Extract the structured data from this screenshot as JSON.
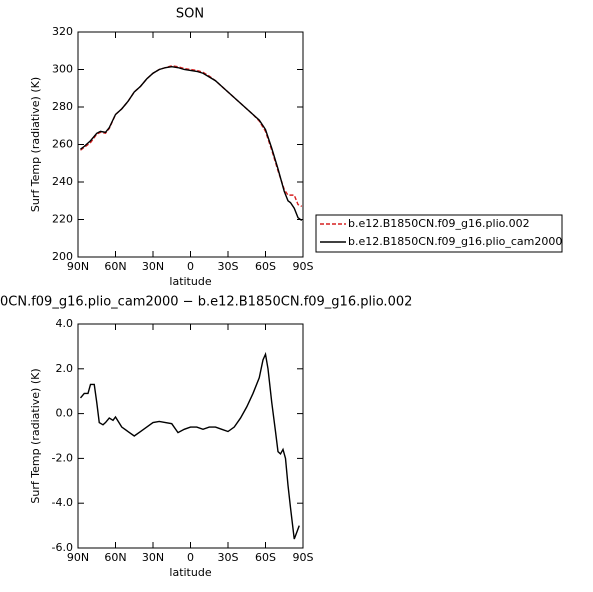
{
  "chart_data": [
    {
      "type": "line",
      "title": "SON",
      "xlabel": "latitude",
      "ylabel": "Surf Temp (radiative) (K)",
      "x": [
        88,
        85,
        80,
        75,
        72,
        68,
        65,
        60,
        55,
        50,
        45,
        40,
        35,
        30,
        25,
        20,
        15,
        10,
        5,
        0,
        -5,
        -10,
        -15,
        -20,
        -25,
        -30,
        -35,
        -40,
        -45,
        -50,
        -55,
        -60,
        -65,
        -70,
        -75,
        -78,
        -80,
        -83,
        -86,
        -89
      ],
      "series": [
        {
          "name": "b.e12.B1850CN.f09_g16.plio.002",
          "color": "#d62020",
          "linestyle": "dashed",
          "values": [
            257,
            258.5,
            261,
            265.5,
            266.5,
            266,
            268.5,
            276,
            279,
            283,
            288,
            291,
            295,
            298,
            300,
            301,
            302,
            301.5,
            300.5,
            300,
            299.5,
            298.5,
            296.5,
            294,
            291,
            288,
            285,
            282,
            279,
            276,
            272.5,
            267,
            257,
            246,
            236,
            233,
            233,
            233,
            228,
            227
          ]
        },
        {
          "name": "b.e12.B1850CN.f09_g16.plio_cam2000",
          "color": "#000000",
          "linestyle": "solid",
          "values": [
            257.5,
            259,
            262,
            266,
            267,
            266.5,
            269,
            276,
            279,
            283,
            288,
            291,
            295,
            298,
            300,
            301,
            301.5,
            301,
            300,
            299.5,
            299,
            298,
            296,
            294,
            291,
            288,
            285,
            282,
            279,
            276,
            273,
            268,
            258,
            247,
            235,
            230,
            229,
            226,
            221,
            219.5
          ]
        }
      ],
      "xlim": [
        90,
        -90
      ],
      "xticks": [
        {
          "value": 90,
          "label": "90N"
        },
        {
          "value": 60,
          "label": "60N"
        },
        {
          "value": 30,
          "label": "30N"
        },
        0,
        {
          "value": -30,
          "label": "30S"
        },
        {
          "value": -60,
          "label": "60S"
        },
        {
          "value": -90,
          "label": "90S"
        }
      ],
      "ylim": [
        200,
        320
      ],
      "yticks": [
        200,
        220,
        240,
        260,
        280,
        300,
        320
      ],
      "legend": "right"
    },
    {
      "type": "line",
      "title": "0CN.f09_g16.plio_cam2000 − b.e12.B1850CN.f09_g16.plio.002",
      "xlabel": "latitude",
      "ylabel": "Surf Temp (radiative) (K)",
      "x": [
        88,
        85,
        82,
        80,
        77,
        75,
        73,
        70,
        68,
        65,
        62,
        60,
        55,
        50,
        45,
        40,
        35,
        30,
        25,
        20,
        15,
        10,
        5,
        0,
        -5,
        -10,
        -15,
        -20,
        -25,
        -30,
        -35,
        -40,
        -45,
        -50,
        -55,
        -58,
        -60,
        -62,
        -65,
        -68,
        -70,
        -72,
        -74,
        -76,
        -78,
        -80,
        -83,
        -85,
        -87
      ],
      "values": [
        0.7,
        0.9,
        0.9,
        1.3,
        1.3,
        0.5,
        -0.4,
        -0.5,
        -0.4,
        -0.2,
        -0.3,
        -0.15,
        -0.6,
        -0.8,
        -1.0,
        -0.8,
        -0.6,
        -0.4,
        -0.35,
        -0.4,
        -0.45,
        -0.85,
        -0.7,
        -0.6,
        -0.6,
        -0.7,
        -0.6,
        -0.6,
        -0.7,
        -0.8,
        -0.6,
        -0.2,
        0.3,
        0.9,
        1.6,
        2.4,
        2.65,
        2.0,
        0.5,
        -0.8,
        -1.7,
        -1.8,
        -1.6,
        -2.0,
        -3.2,
        -4.2,
        -5.6,
        -5.3,
        -5.0
      ],
      "color": "#000000",
      "xlim": [
        90,
        -90
      ],
      "xticks": [
        {
          "value": 90,
          "label": "90N"
        },
        {
          "value": 60,
          "label": "60N"
        },
        {
          "value": 30,
          "label": "30N"
        },
        0,
        {
          "value": -30,
          "label": "30S"
        },
        {
          "value": -60,
          "label": "60S"
        },
        {
          "value": -90,
          "label": "90S"
        }
      ],
      "ylim": [
        -6,
        4
      ],
      "yticks": [
        {
          "value": -6,
          "label": "-6.0"
        },
        {
          "value": -4,
          "label": "-4.0"
        },
        {
          "value": -2,
          "label": "-2.0"
        },
        {
          "value": 0,
          "label": "0.0"
        },
        {
          "value": 2,
          "label": "2.0"
        },
        {
          "value": 4,
          "label": "4.0"
        }
      ]
    }
  ]
}
